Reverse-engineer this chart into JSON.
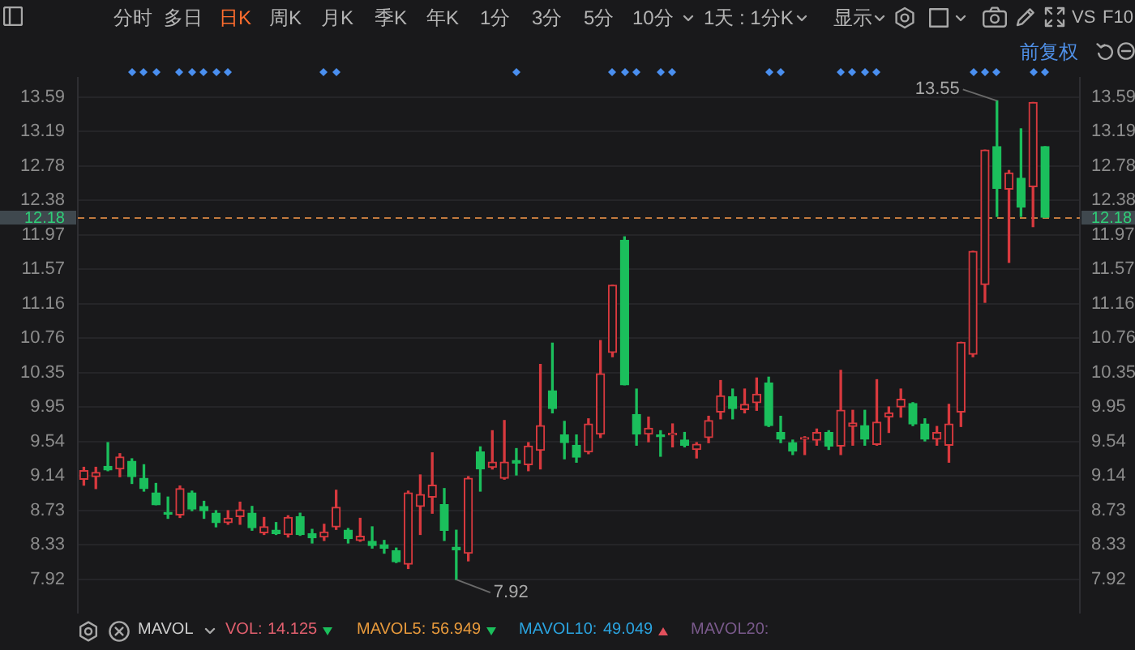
{
  "chart_data": {
    "type": "candlestick",
    "categories": [
      null,
      null,
      null,
      null,
      null,
      null,
      null,
      null,
      null,
      null,
      null,
      null,
      null,
      null,
      null,
      null,
      null,
      null,
      null,
      null,
      null,
      null,
      null,
      null,
      null,
      null,
      null,
      null,
      null,
      null,
      null,
      null,
      null,
      null,
      null,
      null,
      null,
      null,
      null,
      null,
      null,
      null,
      null,
      null,
      null,
      null,
      null,
      null,
      null,
      null,
      null,
      null,
      null,
      null,
      null,
      null,
      null,
      null,
      null,
      null,
      null,
      null,
      null,
      null,
      null,
      null,
      null,
      null,
      null,
      null,
      null,
      null,
      null,
      null,
      null,
      null,
      null,
      null,
      null,
      null,
      null
    ],
    "ohlc": [
      [
        9.1,
        9.24,
        9.03,
        9.2
      ],
      [
        9.13,
        9.24,
        8.99,
        9.18
      ],
      [
        9.25,
        9.53,
        9.2,
        9.21
      ],
      [
        9.22,
        9.4,
        9.13,
        9.36
      ],
      [
        9.31,
        9.34,
        9.05,
        9.13
      ],
      [
        9.11,
        9.27,
        8.96,
        8.99
      ],
      [
        8.94,
        9.05,
        8.8,
        8.8
      ],
      [
        8.71,
        8.89,
        8.64,
        8.69
      ],
      [
        8.68,
        9.02,
        8.65,
        8.99
      ],
      [
        8.94,
        8.96,
        8.73,
        8.75
      ],
      [
        8.78,
        8.84,
        8.64,
        8.73
      ],
      [
        8.7,
        8.73,
        8.54,
        8.59
      ],
      [
        8.59,
        8.73,
        8.57,
        8.64
      ],
      [
        8.66,
        8.83,
        8.57,
        8.74
      ],
      [
        8.7,
        8.78,
        8.5,
        8.53
      ],
      [
        8.47,
        8.65,
        8.45,
        8.54
      ],
      [
        8.5,
        8.59,
        8.45,
        8.46
      ],
      [
        8.45,
        8.67,
        8.42,
        8.65
      ],
      [
        8.66,
        8.7,
        8.44,
        8.45
      ],
      [
        8.46,
        8.51,
        8.35,
        8.41
      ],
      [
        8.42,
        8.57,
        8.38,
        8.48
      ],
      [
        8.54,
        8.97,
        8.51,
        8.77
      ],
      [
        8.5,
        8.52,
        8.35,
        8.4
      ],
      [
        8.38,
        8.64,
        8.37,
        8.43
      ],
      [
        8.37,
        8.54,
        8.29,
        8.32
      ],
      [
        8.33,
        8.38,
        8.23,
        8.29
      ],
      [
        8.26,
        8.29,
        8.12,
        8.13
      ],
      [
        8.1,
        8.96,
        8.05,
        8.94
      ],
      [
        8.78,
        9.15,
        8.45,
        8.92
      ],
      [
        8.89,
        9.41,
        8.7,
        9.03
      ],
      [
        8.8,
        8.99,
        8.38,
        8.5
      ],
      [
        8.3,
        8.5,
        7.92,
        8.27
      ],
      [
        8.23,
        9.13,
        8.14,
        9.11
      ],
      [
        9.42,
        9.48,
        8.96,
        9.22
      ],
      [
        9.24,
        9.67,
        9.22,
        9.3
      ],
      [
        9.11,
        9.79,
        9.1,
        9.3
      ],
      [
        9.32,
        9.46,
        9.15,
        9.29
      ],
      [
        9.27,
        9.53,
        9.2,
        9.49
      ],
      [
        9.44,
        10.45,
        9.22,
        9.73
      ],
      [
        10.14,
        10.7,
        9.88,
        9.93
      ],
      [
        9.62,
        9.78,
        9.34,
        9.53
      ],
      [
        9.5,
        9.62,
        9.3,
        9.36
      ],
      [
        9.42,
        9.81,
        9.4,
        9.75
      ],
      [
        9.63,
        10.73,
        9.59,
        10.34
      ],
      [
        10.59,
        11.38,
        10.54,
        11.38
      ],
      [
        11.91,
        11.95,
        10.21,
        10.21
      ],
      [
        9.86,
        10.16,
        9.5,
        9.63
      ],
      [
        9.63,
        9.83,
        9.54,
        9.7
      ],
      [
        9.62,
        9.67,
        9.37,
        9.6
      ],
      [
        9.62,
        9.75,
        9.48,
        9.64
      ],
      [
        9.56,
        9.65,
        9.48,
        9.5
      ],
      [
        9.45,
        9.53,
        9.35,
        9.51
      ],
      [
        9.59,
        9.84,
        9.53,
        9.79
      ],
      [
        9.89,
        10.26,
        9.81,
        10.08
      ],
      [
        10.07,
        10.16,
        9.81,
        9.93
      ],
      [
        9.92,
        10.16,
        9.88,
        9.98
      ],
      [
        10.0,
        10.29,
        9.91,
        10.1
      ],
      [
        10.23,
        10.3,
        9.72,
        9.73
      ],
      [
        9.65,
        9.84,
        9.53,
        9.57
      ],
      [
        9.53,
        9.56,
        9.39,
        9.43
      ],
      [
        9.57,
        9.6,
        9.39,
        9.59
      ],
      [
        9.56,
        9.69,
        9.5,
        9.65
      ],
      [
        9.65,
        9.67,
        9.45,
        9.49
      ],
      [
        9.49,
        10.38,
        9.39,
        9.91
      ],
      [
        9.72,
        9.91,
        9.5,
        9.76
      ],
      [
        9.73,
        9.91,
        9.5,
        9.57
      ],
      [
        9.51,
        10.27,
        9.5,
        9.77
      ],
      [
        9.83,
        9.95,
        9.65,
        9.88
      ],
      [
        9.95,
        10.16,
        9.83,
        10.04
      ],
      [
        9.99,
        10.0,
        9.73,
        9.75
      ],
      [
        9.75,
        9.81,
        9.55,
        9.57
      ],
      [
        9.57,
        9.72,
        9.5,
        9.65
      ],
      [
        9.5,
        9.98,
        9.3,
        9.75
      ],
      [
        9.89,
        10.71,
        9.72,
        10.71
      ],
      [
        10.57,
        11.78,
        10.54,
        11.78
      ],
      [
        11.39,
        12.97,
        11.18,
        12.97
      ],
      [
        13.01,
        13.55,
        12.19,
        12.52
      ],
      [
        12.51,
        12.73,
        11.65,
        12.7
      ],
      [
        12.64,
        13.22,
        12.19,
        12.3
      ],
      [
        12.54,
        13.53,
        12.07,
        13.53
      ],
      [
        13.01,
        13.01,
        12.18,
        12.18
      ]
    ],
    "colors": [
      "#d8393e",
      "#d8393e",
      "#1bbf5c",
      "#d8393e",
      "#1bbf5c",
      "#1bbf5c",
      "#1bbf5c",
      "#1bbf5c",
      "#d8393e",
      "#1bbf5c",
      "#1bbf5c",
      "#1bbf5c",
      "#d8393e",
      "#d8393e",
      "#1bbf5c",
      "#d8393e",
      "#1bbf5c",
      "#d8393e",
      "#1bbf5c",
      "#1bbf5c",
      "#d8393e",
      "#d8393e",
      "#1bbf5c",
      "#d8393e",
      "#1bbf5c",
      "#1bbf5c",
      "#1bbf5c",
      "#d8393e",
      "#d8393e",
      "#d8393e",
      "#1bbf5c",
      "#1bbf5c",
      "#d8393e",
      "#1bbf5c",
      "#d8393e",
      "#d8393e",
      "#1bbf5c",
      "#d8393e",
      "#d8393e",
      "#1bbf5c",
      "#1bbf5c",
      "#1bbf5c",
      "#d8393e",
      "#d8393e",
      "#d8393e",
      "#1bbf5c",
      "#1bbf5c",
      "#d8393e",
      "#1bbf5c",
      "#d8393e",
      "#1bbf5c",
      "#d8393e",
      "#d8393e",
      "#d8393e",
      "#1bbf5c",
      "#d8393e",
      "#d8393e",
      "#1bbf5c",
      "#1bbf5c",
      "#1bbf5c",
      "#d8393e",
      "#d8393e",
      "#1bbf5c",
      "#d8393e",
      "#d8393e",
      "#1bbf5c",
      "#d8393e",
      "#d8393e",
      "#d8393e",
      "#1bbf5c",
      "#1bbf5c",
      "#d8393e",
      "#d8393e",
      "#d8393e",
      "#d8393e",
      "#d8393e",
      "#1bbf5c",
      "#d8393e",
      "#1bbf5c",
      "#d8393e",
      "#1bbf5c"
    ],
    "ylim": [
      7.53,
      13.82
    ],
    "yticks": [
      7.92,
      8.33,
      8.73,
      9.14,
      9.54,
      9.95,
      10.35,
      10.76,
      11.16,
      11.57,
      11.97,
      12.38,
      12.78,
      13.19,
      13.59
    ],
    "y2lim": [
      7.53,
      13.82
    ],
    "y2ticks": [
      7.92,
      8.33,
      8.73,
      9.14,
      9.54,
      9.95,
      10.35,
      10.76,
      11.16,
      11.57,
      11.97,
      12.38,
      12.78,
      13.19,
      13.59
    ],
    "tick_labels": "y",
    "grid": "y",
    "ref_lines": [
      {
        "axis": "y",
        "value": 12.18,
        "label": "12.18",
        "color": "#c27a3e",
        "line_style": "dashed"
      }
    ],
    "annotations": [
      "分时",
      "多日",
      "日K",
      "周K",
      "月K",
      "季K",
      "年K",
      "1分",
      "3分",
      "5分",
      "10分",
      "1天 : 1分K",
      "显示",
      "VS",
      "F10",
      "前复权",
      "MAVOL",
      "VOL:",
      "14.125",
      "MAVOL5:",
      "56.949",
      "MAVOL10:",
      "49.049",
      "MAVOL20:",
      "13.55",
      "7.92"
    ]
  }
}
